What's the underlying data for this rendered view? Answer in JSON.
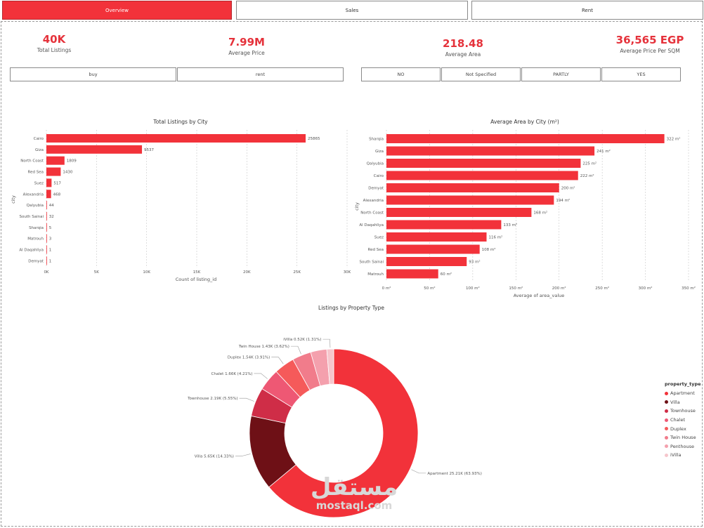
{
  "tabs": [
    {
      "label": "Overview",
      "active": true
    },
    {
      "label": "Sales",
      "active": false
    },
    {
      "label": "Rent",
      "active": false
    }
  ],
  "kpis": [
    {
      "value": "40K",
      "label": "Total Listings"
    },
    {
      "value": "7.99M",
      "label": "Average Price"
    },
    {
      "value": "218.48",
      "label": "Average Area"
    },
    {
      "value": "36,565 EGP",
      "label": "Average Price Per SQM"
    }
  ],
  "slicers": {
    "listing_type": [
      "buy",
      "rent"
    ],
    "furnished": [
      "NO",
      "Not Specified",
      "PARTLY",
      "YES"
    ]
  },
  "watermark": {
    "arabic": "مستقل",
    "latin": "mostaql.com"
  },
  "colors": {
    "accent": "#f2323a",
    "kpi": "#e5323b"
  },
  "chart_data": [
    {
      "type": "bar",
      "orientation": "horizontal",
      "title": "Total Listings by City",
      "xlabel": "Count of listing_id",
      "ylabel": "city",
      "xlim": [
        0,
        30000
      ],
      "xticks": [
        "0K",
        "5K",
        "10K",
        "15K",
        "20K",
        "25K",
        "30K"
      ],
      "grid": true,
      "categories": [
        "Cairo",
        "Giza",
        "North Coast",
        "Red Sea",
        "Suez",
        "Alexandria",
        "Qalyubia",
        "South Sainai",
        "Sharqia",
        "Matrouh",
        "Al Daqahliya",
        "Demyat"
      ],
      "values": [
        25865,
        9537,
        1809,
        1430,
        517,
        468,
        44,
        32,
        5,
        3,
        1,
        1
      ],
      "labels": [
        "25865",
        "9537",
        "1809",
        "1430",
        "517",
        "468",
        "44",
        "32",
        "5",
        "3",
        "1",
        "1"
      ]
    },
    {
      "type": "bar",
      "orientation": "horizontal",
      "title": "Average Area by City (m²)",
      "xlabel": "Average of area_value",
      "ylabel": "city",
      "xlim": [
        0,
        350
      ],
      "xticks": [
        "0 m²",
        "50 m²",
        "100 m²",
        "150 m²",
        "200 m²",
        "250 m²",
        "300 m²",
        "350 m²"
      ],
      "grid": true,
      "categories": [
        "Sharqia",
        "Giza",
        "Qalyubia",
        "Cairo",
        "Demyat",
        "Alexandria",
        "North Coast",
        "Al Daqahliya",
        "Suez",
        "Red Sea",
        "South Sainai",
        "Matrouh"
      ],
      "values": [
        322,
        241,
        225,
        222,
        200,
        194,
        168,
        133,
        116,
        108,
        93,
        60
      ],
      "labels": [
        "322 m²",
        "241 m²",
        "225 m²",
        "222 m²",
        "200 m²",
        "194 m²",
        "168 m²",
        "133 m²",
        "116 m²",
        "108 m²",
        "93 m²",
        "60 m²"
      ]
    },
    {
      "type": "pie",
      "donut": true,
      "title": "Listings by Property Type",
      "legend_title": "property_type",
      "legend_position": "right",
      "slices": [
        {
          "name": "Apartment",
          "value": 25210,
          "percent": 63.93,
          "label": "Apartment 25.21K (63.93%)",
          "color": "#f2323a"
        },
        {
          "name": "Villa",
          "value": 5650,
          "percent": 14.33,
          "label": "Villa 5.65K (14.33%)",
          "color": "#6e1016"
        },
        {
          "name": "Townhouse",
          "value": 2190,
          "percent": 5.55,
          "label": "Townhouse 2.19K (5.55%)",
          "color": "#cf2d47"
        },
        {
          "name": "Chalet",
          "value": 1660,
          "percent": 4.21,
          "label": "Chalet 1.66K (4.21%)",
          "color": "#ee5874"
        },
        {
          "name": "Duplex",
          "value": 1540,
          "percent": 3.91,
          "label": "Duplex 1.54K (3.91%)",
          "color": "#f55a5a"
        },
        {
          "name": "Twin House",
          "value": 1430,
          "percent": 3.62,
          "label": "Twin House 1.43K (3.62%)",
          "color": "#f17c8b"
        },
        {
          "name": "Penthouse",
          "value": 1220,
          "percent": 3.1,
          "label": "",
          "color": "#f4a0ad"
        },
        {
          "name": "iVilla",
          "value": 520,
          "percent": 1.31,
          "label": "iVilla 0.52K (1.31%)",
          "color": "#f6c6cc"
        }
      ]
    }
  ]
}
